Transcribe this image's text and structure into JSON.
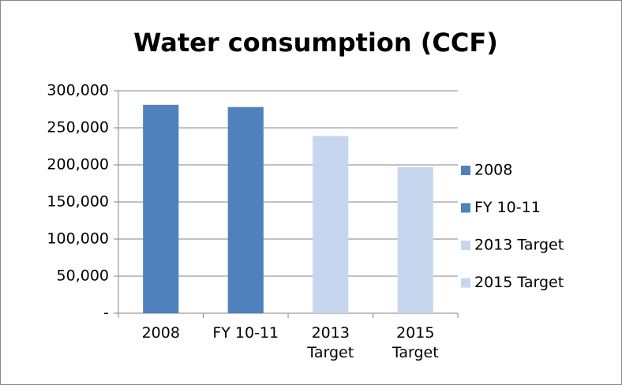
{
  "chart_data": {
    "type": "bar",
    "title": "Water consumption (CCF)",
    "categories": [
      "2008",
      "FY 10-11",
      "2013 Target",
      "2015 Target"
    ],
    "values": [
      281000,
      278000,
      239000,
      197000
    ],
    "colors": [
      "#4f81bd",
      "#4f81bd",
      "#c6d6ef",
      "#c6d6ef"
    ],
    "ylim": [
      0,
      300000
    ],
    "yticks": [
      {
        "value": 0,
        "label": "-"
      },
      {
        "value": 50000,
        "label": "50,000"
      },
      {
        "value": 100000,
        "label": "100,000"
      },
      {
        "value": 150000,
        "label": "150,000"
      },
      {
        "value": 200000,
        "label": "200,000"
      },
      {
        "value": 250000,
        "label": "250,000"
      },
      {
        "value": 300000,
        "label": "300,000"
      }
    ],
    "grid": true,
    "legend": "right"
  }
}
